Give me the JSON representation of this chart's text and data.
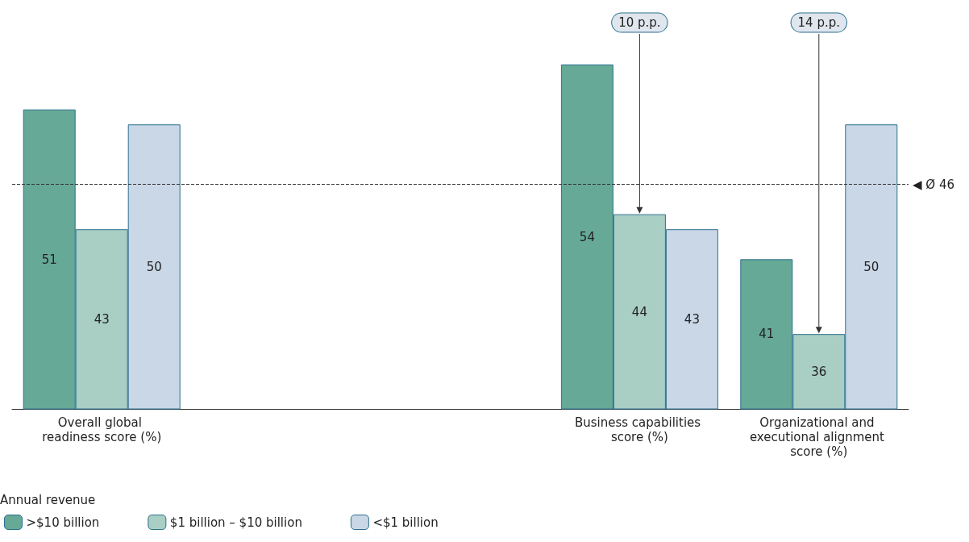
{
  "chart_data": {
    "type": "bar",
    "categories": [
      "Overall global readiness score (%)",
      null,
      null,
      "Business capabilities score (%)",
      "Organizational and executional alignment score (%)"
    ],
    "series": [
      {
        "name": ">$10 billion",
        "color": "#66a996",
        "values": [
          51,
          null,
          null,
          54,
          41
        ]
      },
      {
        "name": "$1 billion – $10 billion",
        "color": "#a9cec4",
        "values": [
          43,
          null,
          null,
          44,
          36
        ]
      },
      {
        "name": "<$1 billion",
        "color": "#c9d7e6",
        "values": [
          50,
          null,
          null,
          43,
          50
        ]
      }
    ],
    "ylim": [
      31,
      54
    ],
    "data_labels": true,
    "legend": "bottom left",
    "legend_title": "Annual revenue",
    "ref_lines": [
      {
        "axis": "y",
        "value": 46,
        "label": "◀ Ø 46",
        "line_style": "dashed"
      }
    ],
    "annotations": [
      "10 p.p.",
      "14 p.p."
    ]
  }
}
